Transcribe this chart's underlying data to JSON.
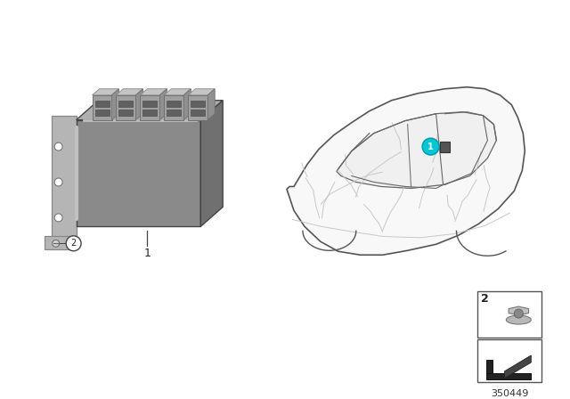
{
  "bg_color": "#ffffff",
  "fig_width": 6.4,
  "fig_height": 4.48,
  "dpi": 100,
  "part_number": "350449",
  "teal_color": "#00C8D4",
  "ecu_front_color": "#8a8a8a",
  "ecu_top_color": "#b0b0b0",
  "ecu_right_color": "#707070",
  "bracket_color": "#aaaaaa",
  "plug_color": "#999999",
  "plug_top_color": "#c0c0c0",
  "car_outline_color": "#555555",
  "car_fill_color": "#f5f5f5",
  "wire_color": "#bbbbbb",
  "box_edge_color": "#444444",
  "nut_color": "#aaaaaa",
  "label_color": "#222222"
}
